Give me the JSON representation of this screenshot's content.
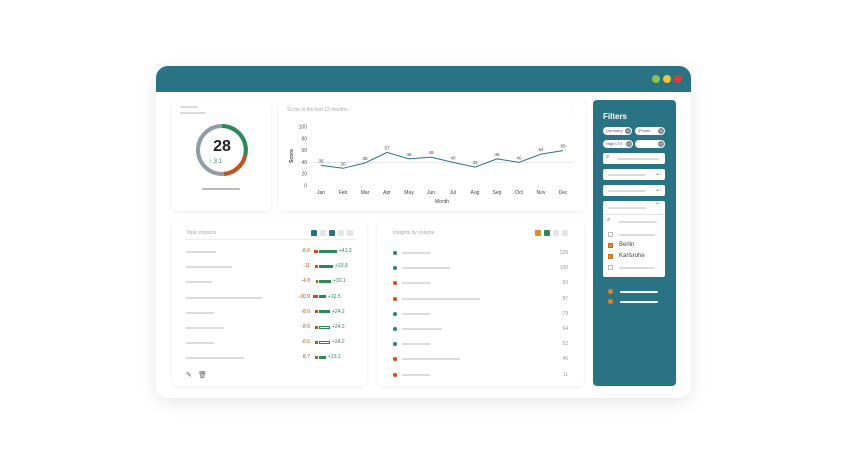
{
  "score": {
    "value": "28",
    "delta": "3.1"
  },
  "line_card": {
    "title": "Score in the last 12 months",
    "menu": "⋮"
  },
  "chart_data": {
    "type": "line",
    "title": "Score in the last 12 months",
    "xlabel": "Month",
    "ylabel": "Score",
    "categories": [
      "Jan",
      "Feb",
      "Mar",
      "Apr",
      "May",
      "Jun",
      "Jul",
      "Aug",
      "Sep",
      "Oct",
      "Nov",
      "Dec"
    ],
    "values": [
      35,
      30,
      39,
      57,
      46,
      49,
      40,
      32,
      46,
      40,
      54,
      60
    ],
    "yticks": [
      "100",
      "80",
      "60",
      "40",
      "20",
      "0"
    ],
    "ylim": [
      0,
      100
    ],
    "color": "#2a7384"
  },
  "topic": {
    "title": "Topic impacts",
    "rows": [
      {
        "neg": "-8.6",
        "pos": "+41.3"
      },
      {
        "neg": "-11",
        "pos": "+33.9"
      },
      {
        "neg": "-4.8",
        "pos": "+30.1"
      },
      {
        "neg": "-30.9",
        "pos": "+12.5"
      },
      {
        "neg": "-8.6",
        "pos": "+24.2"
      },
      {
        "neg": "-8.6",
        "pos": "+24.2"
      },
      {
        "neg": "-8.6",
        "pos": "+24.2"
      },
      {
        "neg": "-8.7",
        "pos": "+13.2"
      }
    ]
  },
  "insights": {
    "title": "Insights by volume",
    "rows": [
      {
        "value": "129",
        "color": "#2a8a5a"
      },
      {
        "value": "100",
        "color": "#2a8a5a"
      },
      {
        "value": "93",
        "color": "#c2541a"
      },
      {
        "value": "87",
        "color": "#c2541a"
      },
      {
        "value": "79",
        "color": "#2a8a5a"
      },
      {
        "value": "64",
        "color": "#2a8a5a"
      },
      {
        "value": "52",
        "color": "#2a8a5a"
      },
      {
        "value": "46",
        "color": "#c2541a"
      },
      {
        "value": "11",
        "color": "#c2541a"
      }
    ]
  },
  "filters": {
    "title": "Filters",
    "chips": [
      "Germany",
      "iPhone",
      "High LTV"
    ],
    "options": [
      "Berlin",
      "Karlsruhe"
    ]
  }
}
